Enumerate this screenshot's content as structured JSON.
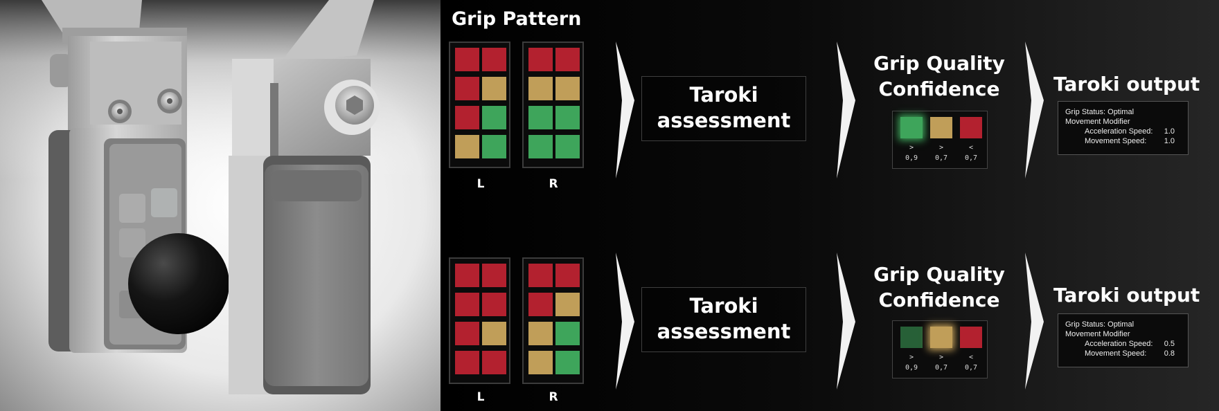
{
  "grip_pattern_title": "Grip Pattern",
  "colors": {
    "red": "#b3212f",
    "amber": "#c09e59",
    "green": "#3ea55b",
    "background": "#000000"
  },
  "rows": [
    {
      "left_grid": [
        [
          "red",
          "red"
        ],
        [
          "red",
          "amber"
        ],
        [
          "red",
          "green"
        ],
        [
          "amber",
          "green"
        ]
      ],
      "right_grid": [
        [
          "red",
          "red"
        ],
        [
          "amber",
          "amber"
        ],
        [
          "green",
          "green"
        ],
        [
          "green",
          "green"
        ]
      ],
      "left_label": "L",
      "right_label": "R",
      "assessment": {
        "line1": "Taroki",
        "line2": "assessment"
      },
      "confidence": {
        "title_line1": "Grip Quality",
        "title_line2": "Confidence",
        "items": [
          {
            "color": "green",
            "glow": true,
            "dim": false,
            "symbol": ">",
            "value": "0,9"
          },
          {
            "color": "amber",
            "glow": false,
            "dim": false,
            "symbol": ">",
            "value": "0,7"
          },
          {
            "color": "red",
            "glow": false,
            "dim": false,
            "symbol": "<",
            "value": "0,7"
          }
        ]
      },
      "output": {
        "title": "Taroki output",
        "grip_status": "Grip Status: Optimal",
        "movement_modifier": "Movement Modifier",
        "acceleration_label": "Acceleration Speed:",
        "acceleration_value": "1.0",
        "movement_label": "Movement Speed:",
        "movement_value": "1.0"
      }
    },
    {
      "left_grid": [
        [
          "red",
          "red"
        ],
        [
          "red",
          "red"
        ],
        [
          "red",
          "amber"
        ],
        [
          "red",
          "red"
        ]
      ],
      "right_grid": [
        [
          "red",
          "red"
        ],
        [
          "red",
          "amber"
        ],
        [
          "amber",
          "green"
        ],
        [
          "amber",
          "green"
        ]
      ],
      "left_label": "L",
      "right_label": "R",
      "assessment": {
        "line1": "Taroki",
        "line2": "assessment"
      },
      "confidence": {
        "title_line1": "Grip Quality",
        "title_line2": "Confidence",
        "items": [
          {
            "color": "green",
            "glow": false,
            "dim": true,
            "symbol": ">",
            "value": "0,9"
          },
          {
            "color": "amber",
            "glow": true,
            "dim": false,
            "symbol": ">",
            "value": "0,7"
          },
          {
            "color": "red",
            "glow": false,
            "dim": false,
            "symbol": "<",
            "value": "0,7"
          }
        ]
      },
      "output": {
        "title": "Taroki output",
        "grip_status": "Grip Status: Optimal",
        "movement_modifier": "Movement Modifier",
        "acceleration_label": "Acceleration Speed:",
        "acceleration_value": "0.5",
        "movement_label": "Movement Speed:",
        "movement_value": "0.8"
      }
    }
  ]
}
